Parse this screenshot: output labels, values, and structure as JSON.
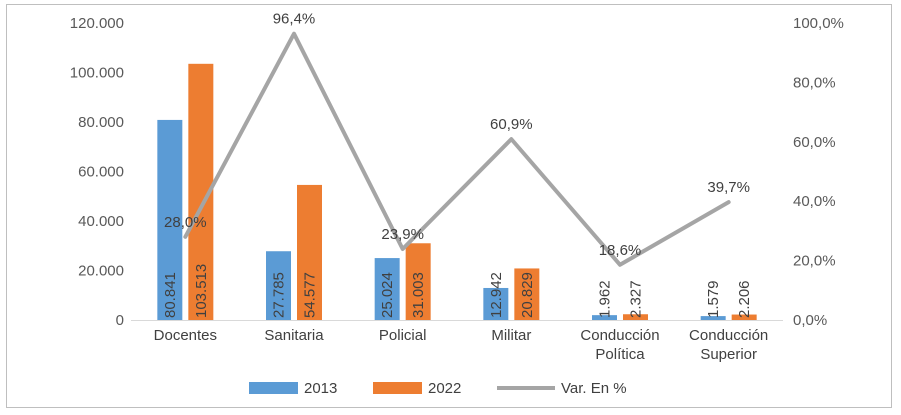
{
  "chart_data": {
    "type": "bar",
    "categories": [
      [
        "Docentes"
      ],
      [
        "Sanitaria"
      ],
      [
        "Policial"
      ],
      [
        "Militar"
      ],
      [
        "Conducción",
        "Política"
      ],
      [
        "Conducción",
        "Superior"
      ]
    ],
    "series": [
      {
        "name": "2013",
        "type": "bar",
        "axis": "left",
        "color": "#5b9bd5",
        "values": [
          80841,
          27785,
          25024,
          12942,
          1962,
          1579
        ],
        "labels": [
          "80.841",
          "27.785",
          "25.024",
          "12.942",
          "1.962",
          "1.579"
        ]
      },
      {
        "name": "2022",
        "type": "bar",
        "axis": "left",
        "color": "#ed7d31",
        "values": [
          103513,
          54577,
          31003,
          20829,
          2327,
          2206
        ],
        "labels": [
          "103.513",
          "54.577",
          "31.003",
          "20.829",
          "2.327",
          "2.206"
        ]
      },
      {
        "name": "Var. En %",
        "type": "line",
        "axis": "right",
        "color": "#a5a5a5",
        "values": [
          28.0,
          96.4,
          23.9,
          60.9,
          18.6,
          39.7
        ],
        "labels": [
          "28,0%",
          "96,4%",
          "23,9%",
          "60,9%",
          "18,6%",
          "39,7%"
        ]
      }
    ],
    "left_axis": {
      "ylim": [
        0,
        120000
      ],
      "ticks": [
        0,
        20000,
        40000,
        60000,
        80000,
        100000,
        120000
      ],
      "tick_labels": [
        "0",
        "20.000",
        "40.000",
        "60.000",
        "80.000",
        "100.000",
        "120.000"
      ]
    },
    "right_axis": {
      "ylim": [
        0,
        100
      ],
      "ticks": [
        0,
        20,
        40,
        60,
        80,
        100
      ],
      "tick_labels": [
        "0,0%",
        "20,0%",
        "40,0%",
        "60,0%",
        "80,0%",
        "100,0%"
      ]
    },
    "grid": false,
    "legend": "bottom"
  }
}
